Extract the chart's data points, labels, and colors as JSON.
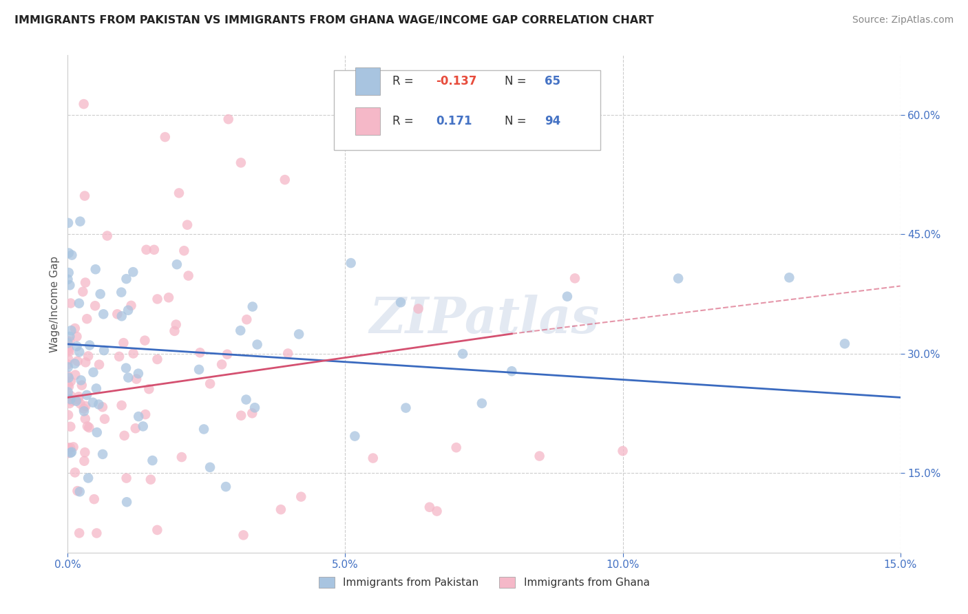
{
  "title": "IMMIGRANTS FROM PAKISTAN VS IMMIGRANTS FROM GHANA WAGE/INCOME GAP CORRELATION CHART",
  "source": "Source: ZipAtlas.com",
  "ylabel": "Wage/Income Gap",
  "y_ticks": [
    0.15,
    0.3,
    0.45,
    0.6
  ],
  "x_ticks": [
    0.0,
    0.05,
    0.1,
    0.15
  ],
  "x_lim": [
    0.0,
    0.15
  ],
  "y_lim": [
    0.05,
    0.675
  ],
  "legend_label1_bottom": "Immigrants from Pakistan",
  "legend_label2_bottom": "Immigrants from Ghana",
  "R_pakistan": -0.137,
  "N_pakistan": 65,
  "R_ghana": 0.171,
  "N_ghana": 94,
  "color_pakistan": "#a8c4e0",
  "color_ghana": "#f5b8c8",
  "line_color_pakistan": "#3a6abf",
  "line_color_ghana": "#d45070",
  "watermark": "ZIPatlas",
  "background_color": "#ffffff",
  "R_color_pak": "#e74c3c",
  "R_color_gha": "#4472c4",
  "N_color": "#4472c4",
  "tick_color": "#4472c4"
}
